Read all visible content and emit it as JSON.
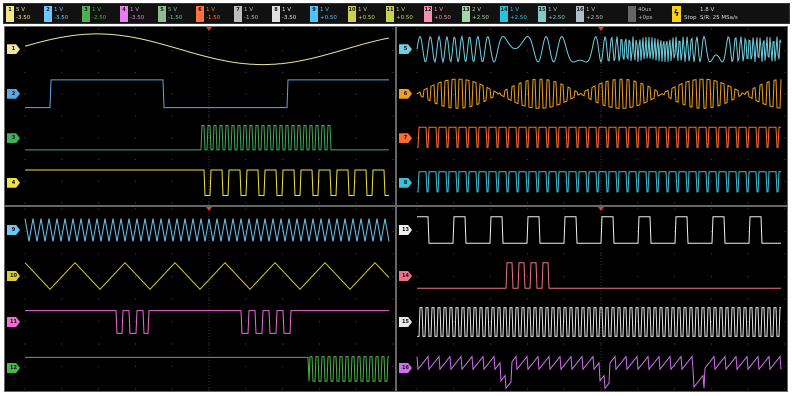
{
  "channels": [
    {
      "id": "1",
      "color": "#f0e68c",
      "scale": "5 V",
      "offset": "-3.50"
    },
    {
      "id": "2",
      "color": "#6ec6ff",
      "scale": "1 V",
      "offset": "-3.50"
    },
    {
      "id": "3",
      "color": "#4caf50",
      "scale": "1 V",
      "offset": "-2.50"
    },
    {
      "id": "4",
      "color": "#e57cf0",
      "scale": "1 V",
      "offset": "-3.50"
    },
    {
      "id": "5",
      "color": "#8fbc8f",
      "scale": "5 V",
      "offset": "-1.50"
    },
    {
      "id": "6",
      "color": "#ff7043",
      "scale": "1 V",
      "offset": "-1.50"
    },
    {
      "id": "7",
      "color": "#bdbdbd",
      "scale": "1 V",
      "offset": "-1.50"
    },
    {
      "id": "8",
      "color": "#e0e0e0",
      "scale": "1 V",
      "offset": "-3.50"
    },
    {
      "id": "9",
      "color": "#4fc3f7",
      "scale": "1 V",
      "offset": "+0.50"
    },
    {
      "id": "10",
      "color": "#c8d34a",
      "scale": "1 V",
      "offset": "+0.50"
    },
    {
      "id": "11",
      "color": "#c8d34a",
      "scale": "1 V",
      "offset": "+0.50"
    },
    {
      "id": "12",
      "color": "#f48fb1",
      "scale": "1 V",
      "offset": "+0.50"
    },
    {
      "id": "13",
      "color": "#a5d6a7",
      "scale": "2 V",
      "offset": "+2.50"
    },
    {
      "id": "14",
      "color": "#26c6da",
      "scale": "1 V",
      "offset": "+2.50"
    },
    {
      "id": "15",
      "color": "#80cbc4",
      "scale": "1 V",
      "offset": "+2.50"
    },
    {
      "id": "16",
      "color": "#b0bec5",
      "scale": "1 V",
      "offset": "+2.50"
    }
  ],
  "timebase": {
    "scale": "40us",
    "delay": "+0ps"
  },
  "trigger": {
    "level": "1.8 V",
    "mode": "Stop",
    "sample_rate": "S/R: 25 MSa/s"
  },
  "panes": [
    {
      "name": "top-left",
      "traces": [
        {
          "type": "sine",
          "color": "#ece7a0",
          "label": "1"
        },
        {
          "type": "square2",
          "color": "#5aa9e6",
          "label": "2"
        },
        {
          "type": "burst",
          "color": "#3fae5a",
          "label": "3"
        },
        {
          "type": "digital",
          "color": "#f0e040",
          "label": "4"
        }
      ]
    },
    {
      "name": "top-right",
      "traces": [
        {
          "type": "chirp",
          "color": "#6fd0e0",
          "label": "5"
        },
        {
          "type": "am",
          "color": "#f0a020",
          "label": "6"
        },
        {
          "type": "pulse",
          "color": "#ff6a30",
          "label": "7"
        },
        {
          "type": "pulse",
          "color": "#3cc0d8",
          "label": "8"
        }
      ]
    },
    {
      "name": "bottom-left",
      "traces": [
        {
          "type": "tri-fast",
          "color": "#6cc6f0",
          "label": "9"
        },
        {
          "type": "tri",
          "color": "#d8d030",
          "label": "10"
        },
        {
          "type": "digital2",
          "color": "#f06ad8",
          "label": "11"
        },
        {
          "type": "burst2",
          "color": "#48b848",
          "label": "12"
        }
      ]
    },
    {
      "name": "bottom-right",
      "traces": [
        {
          "type": "pulse-train",
          "color": "#f0f0f0",
          "label": "13"
        },
        {
          "type": "burst3",
          "color": "#f07088",
          "label": "14"
        },
        {
          "type": "clock",
          "color": "#e8e8e8",
          "label": "15"
        },
        {
          "type": "noise",
          "color": "#d070f0",
          "label": "16"
        }
      ]
    }
  ]
}
